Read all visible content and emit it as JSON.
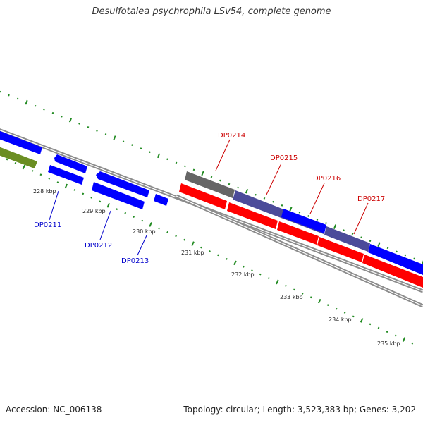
{
  "title": "Desulfotalea psychrophila LSv54, complete genome",
  "footer": {
    "accession": "Accession: NC_006138",
    "summary": "Topology: circular; Length: 3,523,383 bp; Genes: 3,202"
  },
  "colors": {
    "forward_gene": "#0000ff",
    "reverse_gene": "#ff0000",
    "rna_gene": "#6b8e23",
    "other_gene": "#666666",
    "overlap_gene": "#4b4b9a",
    "backbone": "#8c8c8c",
    "tick": "#228b22",
    "forward_label": "#0000cc",
    "reverse_label": "#cc0000"
  },
  "scale_labels": [
    "228 kbp",
    "229 kbp",
    "230 kbp",
    "231 kbp",
    "232 kbp",
    "233 kbp",
    "234 kbp",
    "235 kbp"
  ],
  "gene_labels": [
    {
      "id": "DP0211",
      "strand": "forward"
    },
    {
      "id": "DP0212",
      "strand": "forward"
    },
    {
      "id": "DP0213",
      "strand": "forward"
    },
    {
      "id": "DP0214",
      "strand": "reverse"
    },
    {
      "id": "DP0215",
      "strand": "reverse"
    },
    {
      "id": "DP0216",
      "strand": "reverse"
    },
    {
      "id": "DP0217",
      "strand": "reverse"
    }
  ]
}
